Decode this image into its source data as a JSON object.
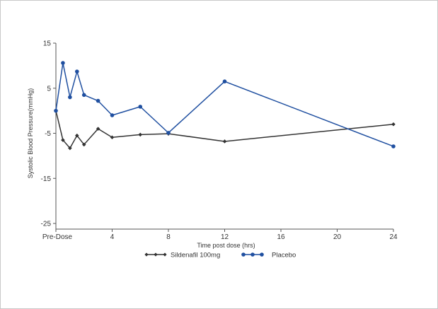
{
  "chart_data": {
    "type": "line",
    "title": "",
    "xlabel": "Time post dose (hrs)",
    "ylabel": "Systolic Blood Pressure(mmHg)",
    "xlim": [
      0,
      24
    ],
    "ylim": [
      -25,
      15
    ],
    "x_ticks": [
      {
        "value": 0,
        "label": "Pre-Dose"
      },
      {
        "value": 4,
        "label": "4"
      },
      {
        "value": 8,
        "label": "8"
      },
      {
        "value": 12,
        "label": "12"
      },
      {
        "value": 16,
        "label": "16"
      },
      {
        "value": 20,
        "label": "20"
      },
      {
        "value": 24,
        "label": "24"
      }
    ],
    "y_ticks": [
      {
        "value": 15,
        "label": "15"
      },
      {
        "value": 5,
        "label": "5"
      },
      {
        "value": -5,
        "label": "-5"
      },
      {
        "value": -15,
        "label": "-15"
      },
      {
        "value": -25,
        "label": "-25"
      }
    ],
    "grid": false,
    "legend_position": "bottom",
    "series": [
      {
        "name": "Sildenafil 100mg",
        "color": "#333333",
        "marker": "diamond",
        "x": [
          0,
          0.5,
          1,
          1.5,
          2,
          3,
          4,
          6,
          8,
          12,
          24
        ],
        "y": [
          0,
          -6.5,
          -8.3,
          -5.5,
          -7.5,
          -4,
          -5.9,
          -5.3,
          -5.1,
          -6.8,
          -3
        ]
      },
      {
        "name": "Placebo",
        "color": "#1f4fa0",
        "marker": "circle",
        "x": [
          0,
          0.5,
          1,
          1.5,
          2,
          3,
          4,
          6,
          8,
          12,
          24
        ],
        "y": [
          0,
          10.6,
          3,
          8.7,
          3.5,
          2.2,
          -1,
          0.9,
          -4.9,
          6.5,
          -7.9
        ]
      }
    ]
  }
}
